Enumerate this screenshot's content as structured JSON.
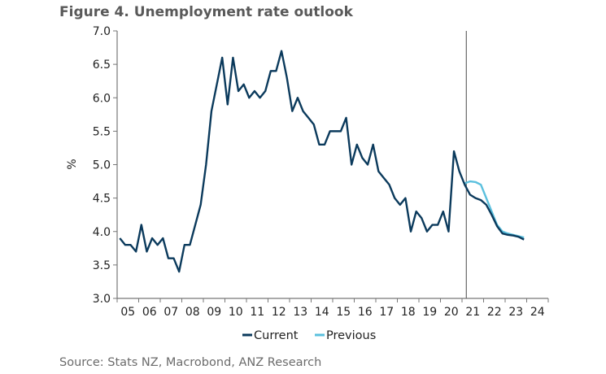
{
  "chart_data": {
    "type": "line",
    "title": "Figure 4. Unemployment rate outlook",
    "xlabel": "",
    "ylabel": "%",
    "ylim": [
      3.0,
      7.0
    ],
    "yticks": [
      "3.0",
      "3.5",
      "4.0",
      "4.5",
      "5.0",
      "5.5",
      "6.0",
      "6.5",
      "7.0"
    ],
    "xlim": [
      2005,
      2025
    ],
    "xticks": [
      "05",
      "06",
      "07",
      "08",
      "09",
      "10",
      "11",
      "12",
      "13",
      "14",
      "15",
      "16",
      "17",
      "18",
      "19",
      "20",
      "21",
      "22",
      "23",
      "24"
    ],
    "x_start": 2005.125,
    "x_step": 0.25,
    "forecast_marker_x": 2021.2,
    "legend_placement": "bottom",
    "series": [
      {
        "name": "Current",
        "color": "#0b3a5c",
        "start_index": 0,
        "values": [
          3.9,
          3.8,
          3.8,
          3.7,
          4.1,
          3.7,
          3.9,
          3.8,
          3.9,
          3.6,
          3.6,
          3.4,
          3.8,
          3.8,
          4.1,
          4.4,
          5.0,
          5.8,
          6.2,
          6.6,
          5.9,
          6.6,
          6.1,
          6.2,
          6.0,
          6.1,
          6.0,
          6.1,
          6.4,
          6.4,
          6.7,
          6.3,
          5.8,
          6.0,
          5.8,
          5.7,
          5.6,
          5.3,
          5.3,
          5.5,
          5.5,
          5.5,
          5.7,
          5.0,
          5.3,
          5.1,
          5.0,
          5.3,
          4.9,
          4.8,
          4.7,
          4.5,
          4.4,
          4.5,
          4.0,
          4.3,
          4.2,
          4.0,
          4.1,
          4.1,
          4.3,
          4.0,
          5.2,
          4.9,
          4.7,
          4.55,
          4.5,
          4.47,
          4.4,
          4.25,
          4.08,
          3.97,
          3.95,
          3.94,
          3.92,
          3.88
        ]
      },
      {
        "name": "Previous",
        "color": "#5bc0de",
        "start_index": 64,
        "values": [
          4.72,
          4.75,
          4.74,
          4.7,
          4.5,
          4.3,
          4.1,
          4.0,
          3.97,
          3.95,
          3.93,
          3.91
        ]
      }
    ]
  },
  "source": "Source: Stats NZ, Macrobond, ANZ Research"
}
